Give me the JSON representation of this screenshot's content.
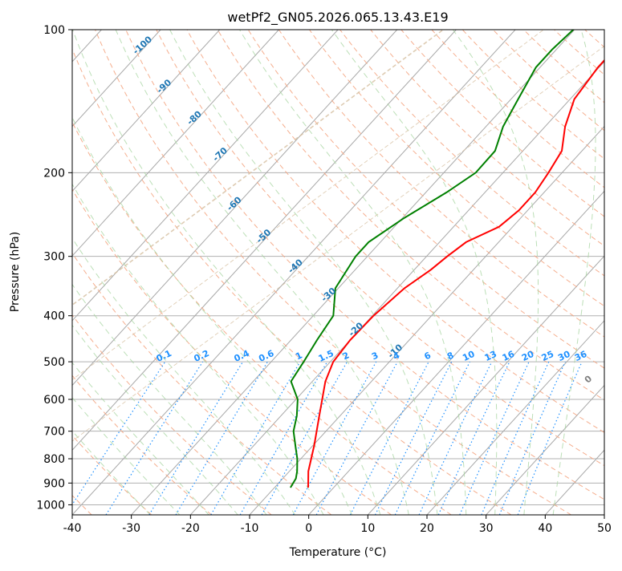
{
  "chart_data": {
    "type": "skew-t",
    "title": "wetPf2_GN05.2026.065.13.43.E19",
    "xlabel": "Temperature (°C)",
    "ylabel": "Pressure (hPa)",
    "xlim": [
      -40,
      50
    ],
    "ylim": [
      1050,
      100
    ],
    "y_scale": "log",
    "grid": true,
    "x_ticks": [
      -40,
      -30,
      -20,
      -10,
      0,
      10,
      20,
      30,
      40,
      50
    ],
    "y_ticks": [
      1000,
      900,
      800,
      700,
      600,
      500,
      400,
      300,
      200,
      100
    ],
    "isotherms": [
      -100,
      -90,
      -80,
      -70,
      -60,
      -50,
      -40,
      -30,
      -20,
      -10
    ],
    "mixing_ratio": {
      "level_hPa": 500,
      "values": [
        0.1,
        0.2,
        0.4,
        0.6,
        1,
        1.5,
        2,
        3,
        4,
        6,
        8,
        10,
        13,
        16,
        20,
        25,
        30,
        36
      ]
    },
    "dry_adiabats": [
      0,
      10,
      20,
      30,
      40
    ],
    "colors": {
      "temperature": "#ff0000",
      "dewpoint": "#008000",
      "isotherm_label": "#1f77b4",
      "mixing_label": "#1e90ff",
      "adiabat_label": "#d62728",
      "zero_label": "#808080"
    },
    "series": [
      {
        "name": "Temperature",
        "points": [
          [
            920,
            -4.3
          ],
          [
            850,
            -6.8
          ],
          [
            750,
            -9.8
          ],
          [
            650,
            -13.5
          ],
          [
            550,
            -17.8
          ],
          [
            500,
            -19.5
          ],
          [
            450,
            -20
          ],
          [
            400,
            -19.8
          ],
          [
            350,
            -18.8
          ],
          [
            320,
            -17.2
          ],
          [
            300,
            -16.5
          ],
          [
            280,
            -15.5
          ],
          [
            260,
            -12.3
          ],
          [
            240,
            -11.5
          ],
          [
            220,
            -11.5
          ],
          [
            200,
            -12.3
          ],
          [
            180,
            -13.4
          ],
          [
            160,
            -16.6
          ],
          [
            140,
            -19.3
          ],
          [
            120,
            -20.2
          ],
          [
            100,
            -20.2
          ]
        ]
      },
      {
        "name": "Dewpoint",
        "points": [
          [
            920,
            -7.3
          ],
          [
            880,
            -7.8
          ],
          [
            850,
            -8.7
          ],
          [
            800,
            -10.6
          ],
          [
            760,
            -12.5
          ],
          [
            700,
            -15.5
          ],
          [
            650,
            -17.3
          ],
          [
            600,
            -19.7
          ],
          [
            550,
            -23.6
          ],
          [
            500,
            -24.5
          ],
          [
            450,
            -25.6
          ],
          [
            400,
            -26.6
          ],
          [
            350,
            -30.5
          ],
          [
            300,
            -32
          ],
          [
            280,
            -32
          ],
          [
            250,
            -29.8
          ],
          [
            220,
            -26.5
          ],
          [
            200,
            -24.6
          ],
          [
            180,
            -24.7
          ],
          [
            160,
            -27.1
          ],
          [
            140,
            -28.8
          ],
          [
            120,
            -30.7
          ],
          [
            110,
            -30.7
          ],
          [
            100,
            -30.2
          ]
        ]
      }
    ]
  }
}
